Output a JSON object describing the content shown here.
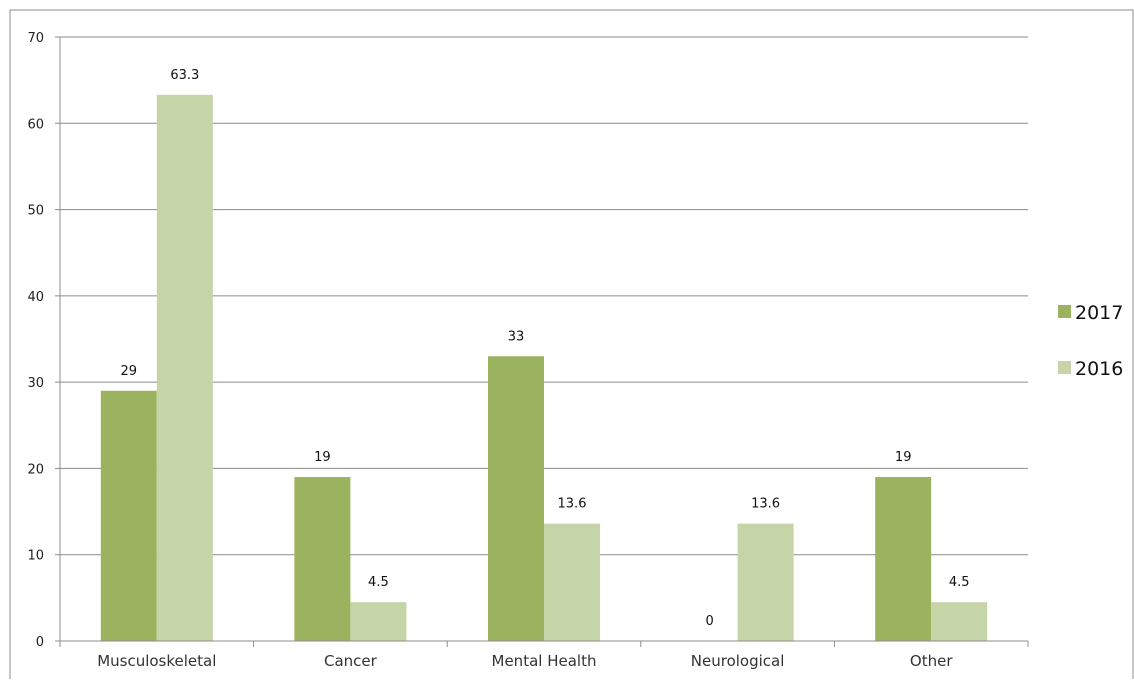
{
  "chart_data": {
    "type": "bar",
    "categories": [
      "Musculoskeletal",
      "Cancer",
      "Mental Health",
      "Neurological",
      "Other"
    ],
    "series": [
      {
        "name": "2017",
        "values": [
          29,
          19,
          33,
          0,
          19
        ],
        "color": "#9bb35f",
        "labels": [
          "29",
          "19",
          "33",
          "0",
          "19"
        ]
      },
      {
        "name": "2016",
        "values": [
          63.3,
          4.5,
          13.6,
          13.6,
          4.5
        ],
        "color": "#c6d5a7",
        "labels": [
          "63.3",
          "4.5",
          "13.6",
          "13.6",
          "4.5"
        ]
      }
    ],
    "ylim": [
      0,
      70
    ],
    "yticks": [
      "0",
      "10",
      "20",
      "30",
      "40",
      "50",
      "60",
      "70"
    ],
    "ytick_values": [
      0,
      10,
      20,
      30,
      40,
      50,
      60,
      70
    ],
    "grid": true,
    "legend_position": "right",
    "gridline_color": "#8c8c8c",
    "frame_color": "#8c8c8c"
  }
}
